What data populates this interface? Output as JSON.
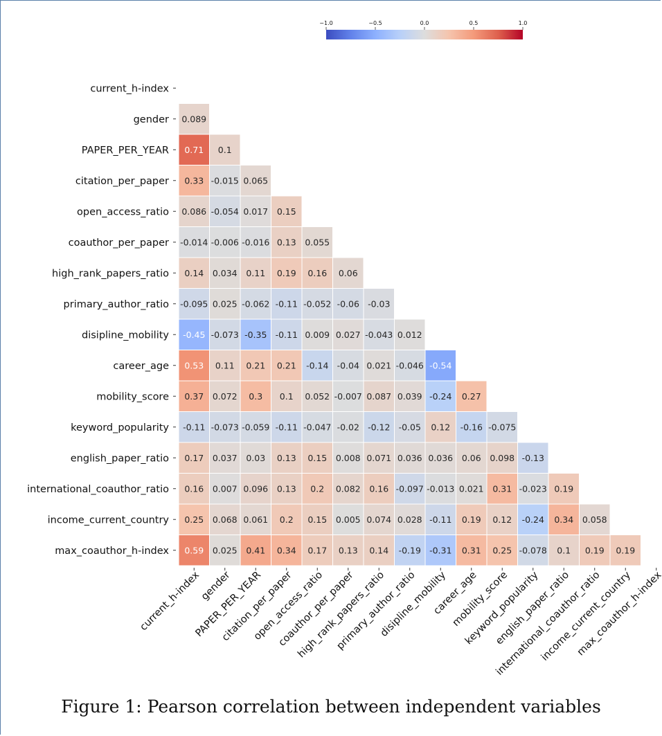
{
  "chart_data": {
    "type": "heatmap",
    "variables": [
      "current_h-index",
      "gender",
      "PAPER_PER_YEAR",
      "citation_per_paper",
      "open_access_ratio",
      "coauthor_per_paper",
      "high_rank_papers_ratio",
      "primary_author_ratio",
      "disipline_mobility",
      "career_age",
      "mobility_score",
      "keyword_popularity",
      "english_paper_ratio",
      "international_coauthor_ratio",
      "income_current_country",
      "max_coauthor_h-index"
    ],
    "mask": "upper-triangle-and-diagonal",
    "lower_triangle": [
      [],
      [
        "0.089"
      ],
      [
        "0.71",
        "0.1"
      ],
      [
        "0.33",
        "-0.015",
        "0.065"
      ],
      [
        "0.086",
        "-0.054",
        "0.017",
        "0.15"
      ],
      [
        "-0.014",
        "-0.006",
        "-0.016",
        "0.13",
        "0.055"
      ],
      [
        "0.14",
        "0.034",
        "0.11",
        "0.19",
        "0.16",
        "0.06"
      ],
      [
        "-0.095",
        "0.025",
        "-0.062",
        "-0.11",
        "-0.052",
        "-0.06",
        "-0.03"
      ],
      [
        "-0.45",
        "-0.073",
        "-0.35",
        "-0.11",
        "0.009",
        "0.027",
        "-0.043",
        "0.012"
      ],
      [
        "0.53",
        "0.11",
        "0.21",
        "0.21",
        "-0.14",
        "-0.04",
        "0.021",
        "-0.046",
        "-0.54"
      ],
      [
        "0.37",
        "0.072",
        "0.3",
        "0.1",
        "0.052",
        "-0.007",
        "0.087",
        "0.039",
        "-0.24",
        "0.27"
      ],
      [
        "-0.11",
        "-0.073",
        "-0.059",
        "-0.11",
        "-0.047",
        "-0.02",
        "-0.12",
        "-0.05",
        "0.12",
        "-0.16",
        "-0.075"
      ],
      [
        "0.17",
        "0.037",
        "0.03",
        "0.13",
        "0.15",
        "0.008",
        "0.071",
        "0.036",
        "0.036",
        "0.06",
        "0.098",
        "-0.13"
      ],
      [
        "0.16",
        "0.007",
        "0.096",
        "0.13",
        "0.2",
        "0.082",
        "0.16",
        "-0.097",
        "-0.013",
        "0.021",
        "0.31",
        "-0.023",
        "0.19"
      ],
      [
        "0.25",
        "0.068",
        "0.061",
        "0.2",
        "0.15",
        "0.005",
        "0.074",
        "0.028",
        "-0.11",
        "0.19",
        "0.12",
        "-0.24",
        "0.34",
        "0.058"
      ],
      [
        "0.59",
        "0.025",
        "0.41",
        "0.34",
        "0.17",
        "0.13",
        "0.14",
        "-0.19",
        "-0.31",
        "0.31",
        "0.25",
        "-0.078",
        "0.1",
        "0.19",
        "0.19"
      ]
    ],
    "colorbar": {
      "colormap": "coolwarm",
      "range": [
        -1.0,
        1.0
      ],
      "ticks": [
        "−1.0",
        "−0.5",
        "0.0",
        "0.5",
        "1.0"
      ],
      "orientation": "horizontal",
      "placement": "top"
    },
    "grid": "white cell borders"
  },
  "caption": "Figure 1: Pearson correlation between independent variables"
}
